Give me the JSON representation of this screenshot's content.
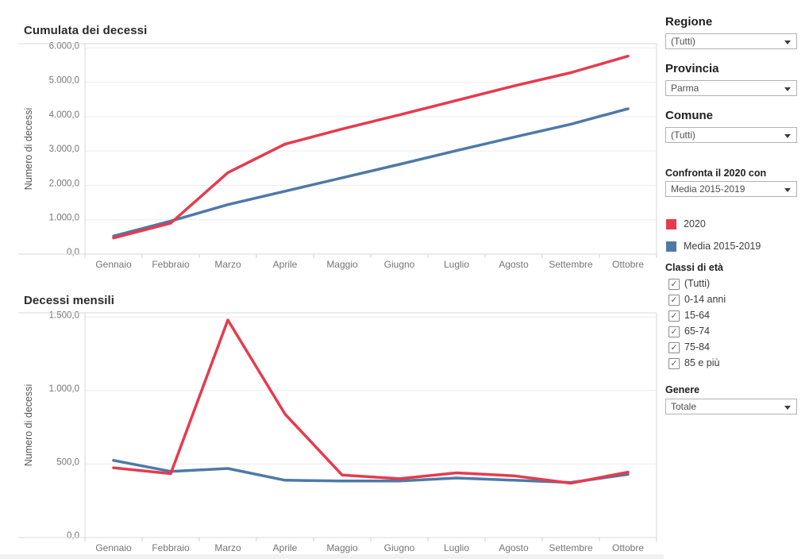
{
  "colors": {
    "series_2020": "#e63b4e",
    "series_media": "#4e79a7",
    "grid": "#ececec",
    "pane_border": "#d9d9d9",
    "tick": "#cfcfcf",
    "tick_text": "#757575",
    "axis_title_text": "#555555"
  },
  "chart_data": [
    {
      "type": "line",
      "title": "Cumulata dei decessi",
      "ylabel": "Numero di decessi",
      "xlabel": "",
      "categories": [
        "Gennaio",
        "Febbraio",
        "Marzo",
        "Aprile",
        "Maggio",
        "Giugno",
        "Luglio",
        "Agosto",
        "Settembre",
        "Ottobre"
      ],
      "series": [
        {
          "name": "2020",
          "color": "#e63b4e",
          "values": [
            470,
            900,
            2370,
            3200,
            3640,
            4050,
            4470,
            4890,
            5280,
            5760
          ]
        },
        {
          "name": "Media 2015-2019",
          "color": "#4e79a7",
          "values": [
            525,
            960,
            1440,
            1830,
            2220,
            2610,
            3010,
            3400,
            3780,
            4230
          ]
        }
      ],
      "ylim": [
        0,
        6000
      ],
      "yticks": [
        0,
        1000,
        2000,
        3000,
        4000,
        5000,
        6000
      ],
      "ytick_labels": [
        "0,0",
        "1.000,0",
        "2.000,0",
        "3.000,0",
        "4.000,0",
        "5.000,0",
        "6.000,0"
      ],
      "grid": true,
      "legend_position": "right-sidebar"
    },
    {
      "type": "line",
      "title": "Decessi mensili",
      "ylabel": "Numero di decessi",
      "xlabel": "",
      "categories": [
        "Gennaio",
        "Febbraio",
        "Marzo",
        "Aprile",
        "Maggio",
        "Giugno",
        "Luglio",
        "Agosto",
        "Settembre",
        "Ottobre"
      ],
      "series": [
        {
          "name": "2020",
          "color": "#e63b4e",
          "values": [
            475,
            435,
            1480,
            840,
            425,
            400,
            440,
            420,
            370,
            445
          ]
        },
        {
          "name": "Media 2015-2019",
          "color": "#4e79a7",
          "values": [
            525,
            450,
            470,
            390,
            385,
            385,
            405,
            390,
            375,
            430
          ]
        }
      ],
      "ylim": [
        0,
        1500
      ],
      "yticks": [
        0,
        500,
        1000,
        1500
      ],
      "ytick_labels": [
        "0,0",
        "500,0",
        "1.000,0",
        "1.500,0"
      ],
      "grid": true,
      "legend_position": "right-sidebar"
    }
  ],
  "sidebar": {
    "filters": [
      {
        "label": "Regione",
        "value": "(Tutti)"
      },
      {
        "label": "Provincia",
        "value": "Parma"
      },
      {
        "label": "Comune",
        "value": "(Tutti)"
      },
      {
        "label": "Confronta il 2020 con",
        "value": "Media 2015-2019"
      }
    ],
    "legend": {
      "items": [
        {
          "label": "2020",
          "color": "#e63b4e"
        },
        {
          "label": "Media 2015-2019",
          "color": "#4e79a7"
        }
      ]
    },
    "age_filter": {
      "label": "Classi di età",
      "options": [
        {
          "label": "(Tutti)",
          "checked": true
        },
        {
          "label": "0-14 anni",
          "checked": true
        },
        {
          "label": "15-64",
          "checked": true
        },
        {
          "label": "65-74",
          "checked": true
        },
        {
          "label": "75-84",
          "checked": true
        },
        {
          "label": "85 e più",
          "checked": true
        }
      ],
      "check_glyph": "✓"
    },
    "genere": {
      "label": "Genere",
      "value": "Totale"
    }
  }
}
